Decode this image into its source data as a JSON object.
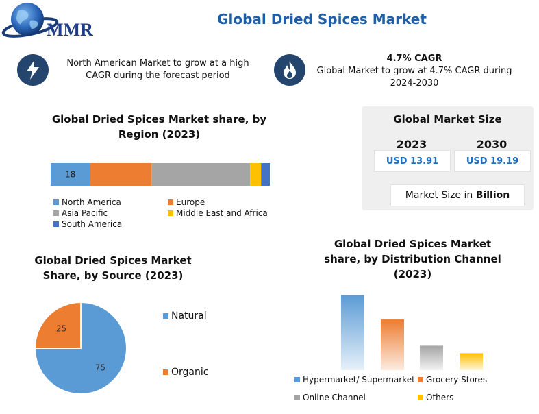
{
  "header": {
    "logo_text": "MMR",
    "title": "Global Dried Spices Market"
  },
  "highlights": [
    {
      "icon": "lightning-bolt-icon",
      "bold": "",
      "text": "North American Market to grow at a high CAGR during the forecast period"
    },
    {
      "icon": "flame-icon",
      "bold": "4.7% CAGR",
      "text": "Global Market to grow at 4.7% CAGR during 2024-2030"
    }
  ],
  "market_size": {
    "title": "Global Market Size",
    "years": [
      {
        "year": "2023",
        "value": "USD 13.91"
      },
      {
        "year": "2030",
        "value": "USD 19.19"
      }
    ],
    "unit_prefix": "Market Size in ",
    "unit_bold": "Billion"
  },
  "chart_data": [
    {
      "type": "bar",
      "orientation": "horizontal-stacked",
      "title": "Global Dried Spices Market share, by Region (2023)",
      "categories": [
        "2023"
      ],
      "series": [
        {
          "name": "North America",
          "values": [
            18
          ],
          "color": "#5b9bd5",
          "label": "18"
        },
        {
          "name": "Europe",
          "values": [
            28
          ],
          "color": "#ed7d31",
          "label": ""
        },
        {
          "name": "Asia Pacific",
          "values": [
            45
          ],
          "color": "#a5a5a5",
          "label": ""
        },
        {
          "name": "Middle East and Africa",
          "values": [
            5
          ],
          "color": "#ffc000",
          "label": ""
        },
        {
          "name": "South America",
          "values": [
            4
          ],
          "color": "#4472c4",
          "label": ""
        }
      ],
      "xlim": [
        0,
        100
      ],
      "legend_placement": "bottom"
    },
    {
      "type": "pie",
      "title": "Global Dried Spices Market Share, by Source (2023)",
      "slices": [
        {
          "name": "Natural",
          "value": 75,
          "color": "#5b9bd5",
          "label": "75"
        },
        {
          "name": "Organic",
          "value": 25,
          "color": "#ed7d31",
          "label": "25"
        }
      ],
      "legend_placement": "right"
    },
    {
      "type": "bar",
      "title": "Global Dried Spices Market share, by Distribution Channel (2023)",
      "categories": [
        "Hypermarket/ Supermarket",
        "Grocery Stores",
        "Online Channel",
        "Others"
      ],
      "values": [
        40,
        27,
        13,
        9
      ],
      "colors": [
        "#5b9bd5",
        "#ed7d31",
        "#a5a5a5",
        "#ffc000"
      ],
      "ylim": [
        0,
        42
      ],
      "grid": false,
      "legend_placement": "bottom"
    }
  ]
}
